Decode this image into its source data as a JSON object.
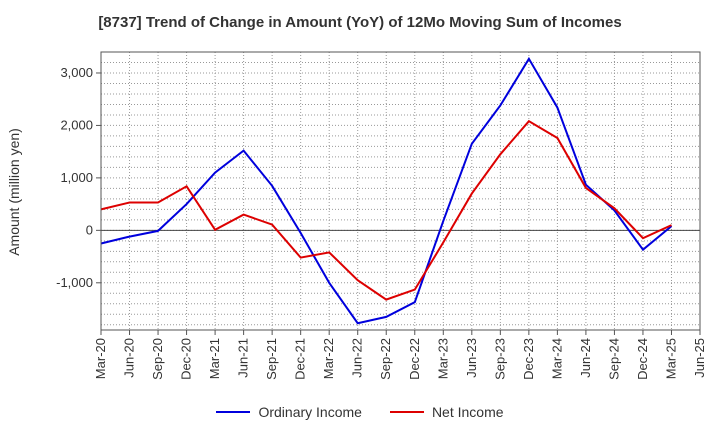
{
  "chart_data": {
    "type": "line",
    "title": "[8737]  Trend of Change in Amount (YoY) of 12Mo Moving Sum of Incomes",
    "ylabel": "Amount (million yen)",
    "xlabel": "",
    "ylim": [
      -1900,
      3400
    ],
    "yticks": [
      -1000,
      0,
      1000,
      2000,
      3000
    ],
    "ytick_labels": [
      "-1,000",
      "0",
      "1,000",
      "2,000",
      "3,000"
    ],
    "x": [
      "Mar-20",
      "Jun-20",
      "Sep-20",
      "Dec-20",
      "Mar-21",
      "Jun-21",
      "Sep-21",
      "Dec-21",
      "Mar-22",
      "Jun-22",
      "Sep-22",
      "Dec-22",
      "Mar-23",
      "Jun-23",
      "Sep-23",
      "Dec-23",
      "Mar-24",
      "Jun-24",
      "Sep-24",
      "Dec-24",
      "Mar-25",
      "Jun-25"
    ],
    "grid": true,
    "legend_position": "bottom",
    "series": [
      {
        "name": "Ordinary Income",
        "color": "#0000dd",
        "values": [
          -250,
          -120,
          -10,
          500,
          1100,
          1520,
          850,
          -50,
          -1000,
          -1770,
          -1650,
          -1370,
          180,
          1650,
          2380,
          3270,
          2340,
          870,
          380,
          -370,
          80,
          null
        ]
      },
      {
        "name": "Net Income",
        "color": "#dd0000",
        "values": [
          400,
          530,
          530,
          840,
          10,
          300,
          110,
          -520,
          -420,
          -950,
          -1320,
          -1130,
          -230,
          700,
          1450,
          2080,
          1760,
          810,
          420,
          -150,
          100,
          null
        ]
      }
    ]
  }
}
